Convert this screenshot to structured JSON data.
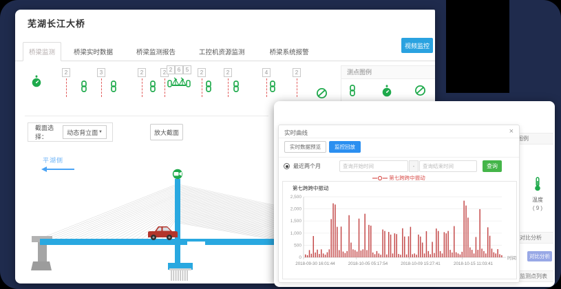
{
  "main_window": {
    "title": "芜湖长江大桥",
    "tabs": [
      {
        "label": "桥梁监测",
        "active": true
      },
      {
        "label": "桥梁实时数据",
        "active": false
      },
      {
        "label": "桥梁监测报告",
        "active": false
      },
      {
        "label": "工控机资源监测",
        "active": false
      },
      {
        "label": "桥梁系统报警",
        "active": false
      }
    ],
    "video_button": "视频监控",
    "sensor_strip": {
      "items": [
        {
          "type": "stopwatch-icon"
        },
        {
          "type": "marker",
          "badge": "2"
        },
        {
          "type": "chain-icon"
        },
        {
          "type": "marker",
          "badge": "3"
        },
        {
          "type": "chain-icon"
        },
        {
          "type": "marker",
          "badge": "2"
        },
        {
          "type": "chain-icon"
        },
        {
          "type": "marker",
          "badge": "2"
        },
        {
          "type": "bridge-icon",
          "badges": [
            "2",
            "6",
            "5"
          ]
        },
        {
          "type": "marker",
          "badge": "2"
        },
        {
          "type": "chain-icon"
        },
        {
          "type": "marker",
          "badge": "2"
        },
        {
          "type": "chain-icon"
        },
        {
          "type": "marker",
          "badge": "4"
        },
        {
          "type": "chain-icon"
        },
        {
          "type": "marker",
          "badge": "2"
        },
        {
          "type": "ban-icon"
        }
      ]
    },
    "legend_panel": {
      "title": "测点图例",
      "icons": [
        "chain-icon",
        "stopwatch-icon",
        "ban-icon"
      ]
    },
    "section_select": {
      "label": "截面选择：",
      "value": "动态背立面",
      "caret": "▼",
      "zoom_button": "放大截面"
    },
    "bridge": {
      "side_label": "平湖侧",
      "tower_icon": "camera-icon",
      "vehicle": "red-car"
    }
  },
  "overlay_window": {
    "sidebar": {
      "legend_title": "测点图例",
      "temp_label": "温度",
      "temp_count": "( 9 )",
      "compare_title": "对比分析",
      "compare_button": "对比分析",
      "points_title": "监测点列表"
    }
  },
  "modal": {
    "title": "实时曲线",
    "close": "×",
    "tabs": [
      {
        "label": "实时数据预览",
        "active": false
      },
      {
        "label": "监控回放",
        "active": true
      }
    ],
    "range_label": "最近两个月",
    "start_placeholder": "查询开始时间",
    "separator": "-",
    "end_placeholder": "查询结束时间",
    "query_button": "查询",
    "legend_label": "第七跨跨中振动"
  },
  "chart_data": {
    "type": "bar",
    "title": "第七跨跨中振动",
    "xlabel": "时间",
    "ylabel": "",
    "ylim": [
      0,
      2500
    ],
    "grid": true,
    "yticks": [
      "0",
      "500",
      "1,000",
      "1,500",
      "2,000",
      "2,500"
    ],
    "xticks": [
      "2018-09-30 16:01:44",
      "2018-10-05 05:17:54",
      "2018-10-09 15:27:41",
      "2018-10-15 11:03:41"
    ],
    "series": [
      {
        "name": "第七跨跨中振动",
        "color": "#bf3a3a",
        "values": [
          120,
          90,
          300,
          150,
          880,
          200,
          320,
          140,
          330,
          160,
          110,
          210,
          330,
          1580,
          2230,
          2180,
          1260,
          300,
          1270,
          240,
          180,
          260,
          1740,
          610,
          330,
          300,
          240,
          1600,
          280,
          330,
          1800,
          300,
          1340,
          1310,
          200,
          130,
          260,
          160,
          110,
          1150,
          1090,
          120,
          1050,
          940,
          160,
          990,
          960,
          140,
          110,
          1200,
          860,
          120,
          870,
          1260,
          130,
          160,
          110,
          940,
          860,
          610,
          160,
          1080,
          260,
          130,
          640,
          180,
          1190,
          1090,
          260,
          160,
          1040,
          990,
          1090,
          310,
          200,
          1290,
          210,
          160,
          120,
          230,
          2340,
          2140,
          1640,
          410,
          310,
          160,
          840,
          310,
          1990,
          360,
          260,
          160,
          1240,
          890,
          360,
          210,
          160,
          340,
          130,
          90
        ]
      }
    ]
  },
  "colors": {
    "green": "#1faa4c",
    "cyan": "#29a8e0",
    "red_series": "#bf3a3a",
    "navy": "#1f2b4d",
    "blue_button": "#2aa2e0",
    "modal_tab_blue": "#2b8ff0",
    "query_green": "#44b549"
  }
}
